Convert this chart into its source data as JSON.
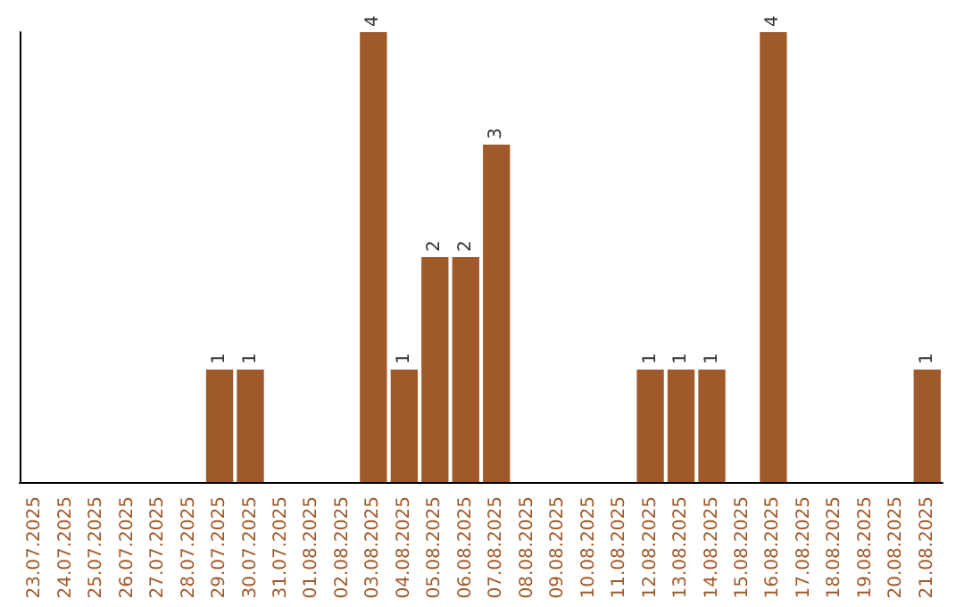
{
  "chart_data": {
    "type": "bar",
    "categories": [
      "23.07.2025",
      "24.07.2025",
      "25.07.2025",
      "26.07.2025",
      "27.07.2025",
      "28.07.2025",
      "29.07.2025",
      "30.07.2025",
      "31.07.2025",
      "01.08.2025",
      "02.08.2025",
      "03.08.2025",
      "04.08.2025",
      "05.08.2025",
      "06.08.2025",
      "07.08.2025",
      "08.08.2025",
      "09.08.2025",
      "10.08.2025",
      "11.08.2025",
      "12.08.2025",
      "13.08.2025",
      "14.08.2025",
      "15.08.2025",
      "16.08.2025",
      "17.08.2025",
      "18.08.2025",
      "19.08.2025",
      "20.08.2025",
      "21.08.2025"
    ],
    "values": [
      0,
      0,
      0,
      0,
      0,
      0,
      1,
      1,
      0,
      0,
      0,
      4,
      1,
      2,
      2,
      3,
      0,
      0,
      0,
      0,
      1,
      1,
      1,
      0,
      4,
      0,
      0,
      0,
      0,
      1
    ],
    "value_labels": [
      null,
      null,
      null,
      null,
      null,
      null,
      "1",
      "1",
      null,
      null,
      null,
      "4",
      "1",
      "2",
      "2",
      "3",
      null,
      null,
      null,
      null,
      "1",
      "1",
      "1",
      null,
      "4",
      null,
      null,
      null,
      null,
      "1"
    ],
    "color": "#a0592a",
    "tick_labels": "x",
    "grid": false
  }
}
